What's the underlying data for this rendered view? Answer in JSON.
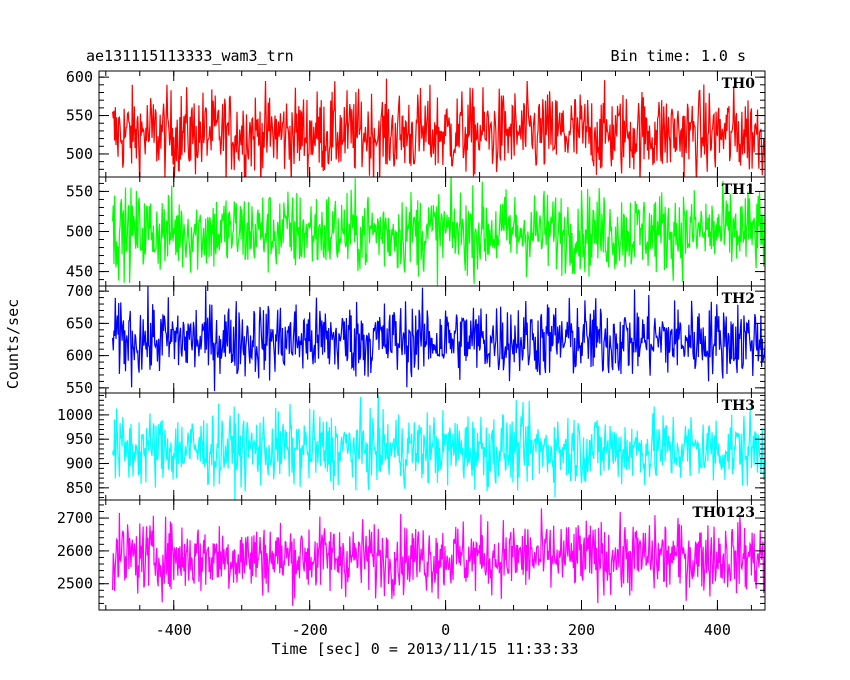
{
  "chart_data": {
    "type": "line",
    "title": "ae131115113333_wam3_trn",
    "subtitle": "Bin time: 1.0 s",
    "xlabel": "Time [sec] 0 = 2013/11/15 11:33:33",
    "ylabel": "Counts/sec",
    "xlim": [
      -510,
      470
    ],
    "x_ticks": [
      -400,
      -200,
      0,
      200,
      400
    ],
    "x_range": [
      -490,
      470
    ],
    "bin_time": 1.0,
    "grid": false,
    "panels": [
      {
        "name": "TH0",
        "color": "#ff0000",
        "ylim": [
          470,
          608
        ],
        "y_ticks": [
          500,
          550,
          600
        ],
        "mean": 527,
        "spread": 28
      },
      {
        "name": "TH1",
        "color": "#00ff00",
        "ylim": [
          432,
          568
        ],
        "y_ticks": [
          450,
          500,
          550
        ],
        "mean": 500,
        "spread": 26
      },
      {
        "name": "TH2",
        "color": "#0000ff",
        "ylim": [
          542,
          708
        ],
        "y_ticks": [
          550,
          600,
          650,
          700
        ],
        "mean": 625,
        "spread": 30
      },
      {
        "name": "TH3",
        "color": "#00ffff",
        "ylim": [
          825,
          1045
        ],
        "y_ticks": [
          850,
          900,
          950,
          1000
        ],
        "mean": 930,
        "spread": 38
      },
      {
        "name": "TH0123",
        "color": "#ff00ff",
        "ylim": [
          2420,
          2755
        ],
        "y_ticks": [
          2500,
          2600,
          2700
        ],
        "mean": 2582,
        "spread": 55
      }
    ]
  }
}
